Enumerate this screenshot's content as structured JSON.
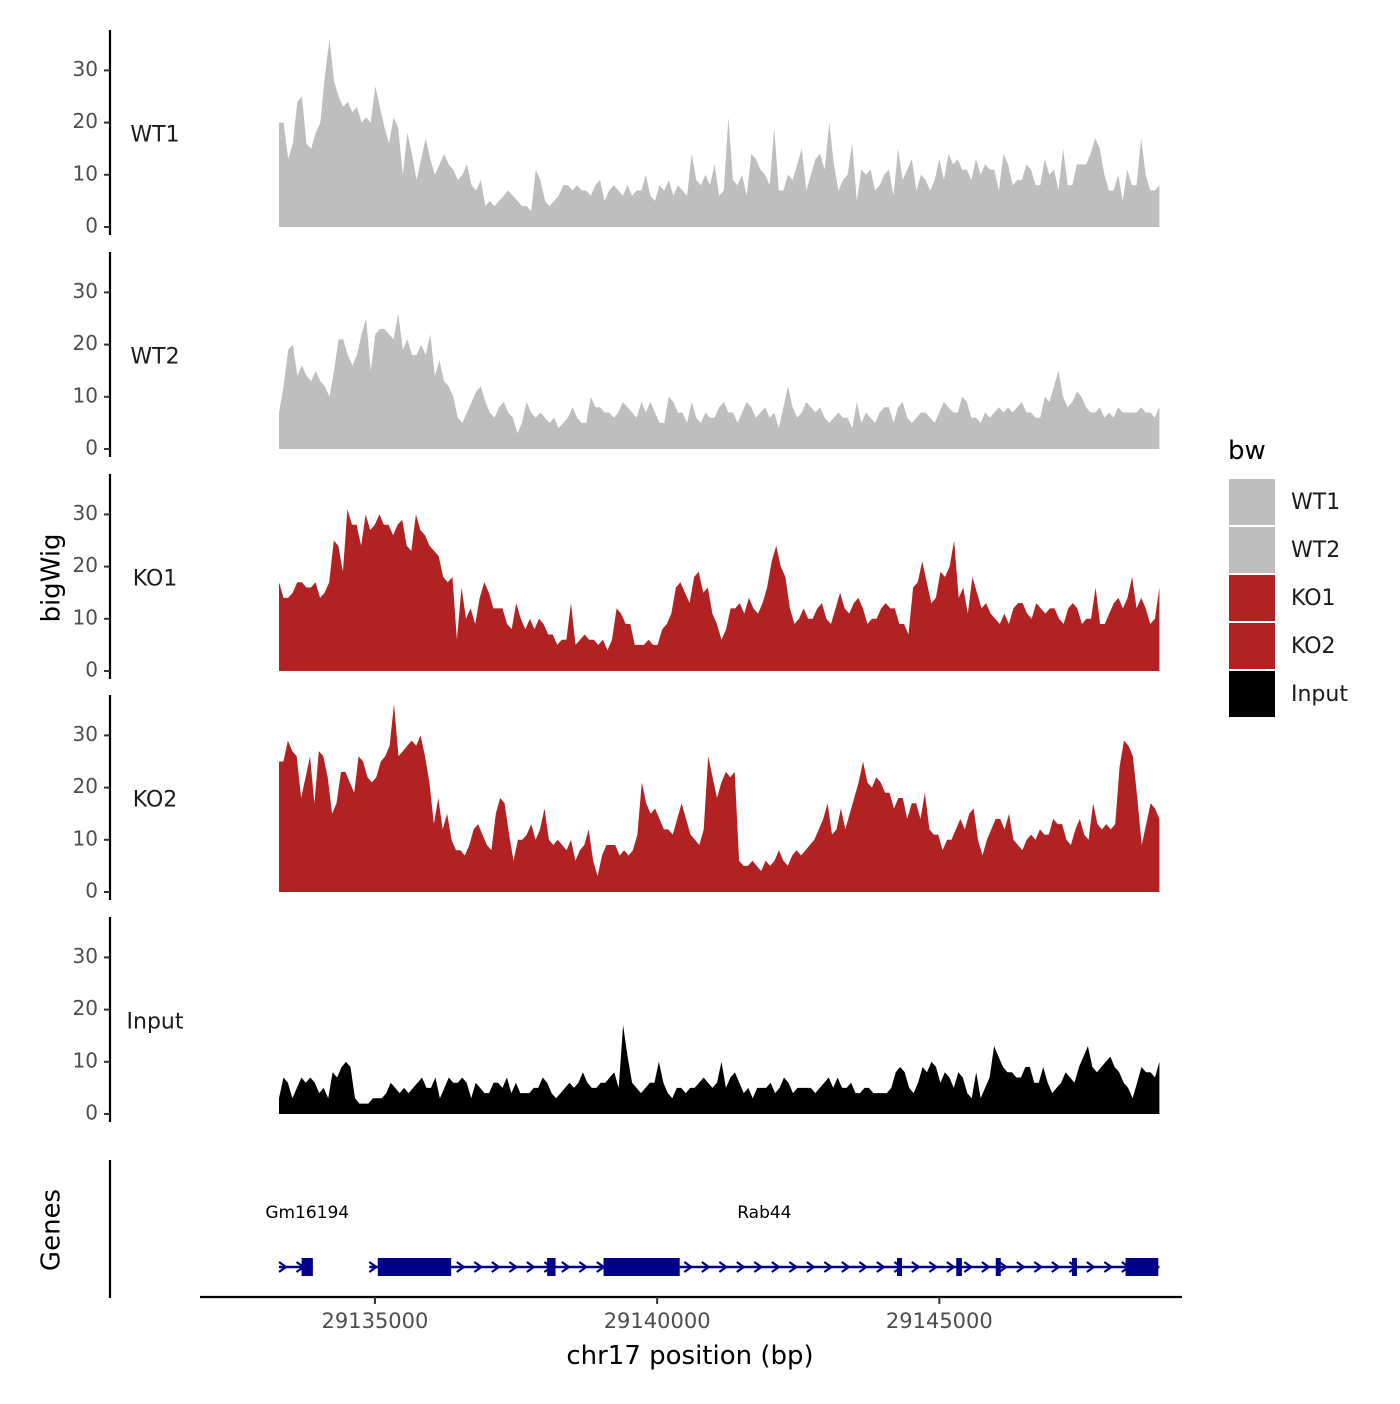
{
  "chart_data": {
    "type": "area",
    "ylabel": "bigWig",
    "xlabel": "chr17 position (bp)",
    "genes_label": "Genes",
    "legend_title": "bw",
    "x_range": [
      29133300,
      29148900
    ],
    "x_axis_limits": [
      29131900,
      29149300
    ],
    "x_ticks": [
      29135000,
      29140000,
      29145000
    ],
    "x_tick_labels": [
      "29135000",
      "29140000",
      "29145000"
    ],
    "y_range": [
      0,
      38
    ],
    "y_ticks": [
      0,
      10,
      20,
      30
    ],
    "y_tick_labels": [
      "0",
      "10",
      "20",
      "30"
    ],
    "colors": {
      "WT1": "#bebebe",
      "WT2": "#bebebe",
      "KO1": "#b22222",
      "KO2": "#b22222",
      "Input": "#000000",
      "gene": "#00008b"
    },
    "series": [
      {
        "name": "WT1",
        "values": [
          20,
          20,
          13,
          16,
          24,
          25,
          16,
          15,
          18,
          20,
          29,
          36,
          28,
          25,
          23,
          24,
          22,
          23,
          20,
          21,
          20,
          27,
          23,
          19,
          16,
          21,
          19,
          10,
          18,
          14,
          9,
          13,
          17,
          13,
          10,
          12,
          14,
          12,
          11,
          9,
          10,
          12,
          8,
          7,
          9,
          4,
          5,
          4,
          5,
          6,
          7,
          6,
          5,
          4,
          4,
          3,
          11,
          9,
          5,
          4,
          5,
          6,
          8,
          8,
          7,
          8,
          7,
          7,
          6,
          8,
          9,
          5,
          7,
          8,
          7,
          6,
          8,
          6,
          7,
          7,
          10,
          6,
          5,
          8,
          7,
          9,
          6,
          8,
          7,
          6,
          14,
          9,
          8,
          10,
          8,
          12,
          6,
          7,
          21,
          9,
          8,
          10,
          6,
          14,
          13,
          11,
          10,
          8,
          19,
          7,
          7,
          10,
          9,
          12,
          15,
          7,
          10,
          13,
          14,
          11,
          20,
          12,
          7,
          9,
          10,
          16,
          5,
          11,
          10,
          11,
          7,
          8,
          10,
          11,
          6,
          15,
          9,
          11,
          13,
          7,
          10,
          9,
          7,
          9,
          13,
          9,
          14,
          12,
          13,
          11,
          11,
          9,
          13,
          10,
          12,
          11,
          11,
          7,
          14,
          12,
          8,
          9,
          9,
          12,
          11,
          8,
          8,
          13,
          10,
          11,
          7,
          15,
          8,
          8,
          12,
          12,
          12,
          14,
          17,
          15,
          10,
          7,
          7,
          10,
          5,
          11,
          8,
          8,
          17,
          10,
          7,
          7,
          8
        ]
      },
      {
        "name": "WT2",
        "values": [
          7,
          12,
          19,
          20,
          14,
          16,
          14,
          13,
          15,
          13,
          12,
          10,
          15,
          21,
          21,
          18,
          16,
          18,
          22,
          25,
          15,
          22,
          23,
          23,
          22,
          21,
          26,
          19,
          21,
          18,
          18,
          20,
          18,
          22,
          14,
          17,
          13,
          12,
          10,
          6,
          5,
          7,
          9,
          11,
          12,
          9,
          7,
          6,
          8,
          9,
          7,
          6,
          3,
          5,
          9,
          7,
          6,
          7,
          6,
          5,
          6,
          4,
          5,
          6,
          8,
          6,
          5,
          5,
          10,
          8,
          8,
          7,
          7,
          6,
          7,
          9,
          8,
          7,
          6,
          9,
          7,
          9,
          7,
          5,
          5,
          10,
          9,
          7,
          7,
          5,
          9,
          6,
          5,
          7,
          6,
          6,
          8,
          9,
          7,
          7,
          5,
          7,
          9,
          8,
          6,
          7,
          8,
          6,
          7,
          4,
          8,
          12,
          8,
          6,
          7,
          9,
          8,
          7,
          8,
          6,
          5,
          6,
          7,
          6,
          6,
          4,
          9,
          5,
          7,
          6,
          5,
          7,
          8,
          8,
          5,
          8,
          9,
          6,
          5,
          6,
          7,
          7,
          6,
          5,
          7,
          9,
          8,
          7,
          7,
          10,
          9,
          6,
          6,
          5,
          7,
          6,
          7,
          8,
          7,
          8,
          7,
          8,
          9,
          7,
          7,
          6,
          6,
          10,
          9,
          12,
          15,
          10,
          8,
          9,
          11,
          10,
          8,
          7,
          7,
          8,
          6,
          7,
          6,
          8,
          7,
          7,
          7,
          7,
          8,
          7,
          7,
          6,
          8
        ]
      },
      {
        "name": "KO1",
        "values": [
          17,
          14,
          14,
          15,
          17,
          17,
          16,
          16,
          17,
          14,
          15,
          17,
          25,
          24,
          19,
          31,
          28,
          28,
          24,
          30,
          27,
          28,
          30,
          28,
          28,
          26,
          28,
          29,
          24,
          23,
          30,
          27,
          26,
          24,
          23,
          22,
          18,
          17,
          18,
          6,
          16,
          10,
          12,
          9,
          14,
          17,
          15,
          12,
          12,
          12,
          9,
          8,
          13,
          10,
          8,
          10,
          8,
          10,
          9,
          7,
          7,
          5,
          6,
          6,
          13,
          5,
          6,
          7,
          6,
          6,
          5,
          6,
          4,
          6,
          12,
          11,
          9,
          9,
          5,
          5,
          5,
          6,
          5,
          5,
          8,
          9,
          11,
          16,
          17,
          15,
          13,
          18,
          19,
          15,
          16,
          11,
          9,
          6,
          8,
          12,
          12,
          13,
          11,
          14,
          12,
          11,
          13,
          16,
          21,
          24,
          20,
          18,
          12,
          9,
          10,
          12,
          10,
          10,
          12,
          13,
          10,
          9,
          12,
          15,
          12,
          11,
          13,
          14,
          12,
          9,
          10,
          10,
          12,
          13,
          12,
          12,
          9,
          9,
          7,
          16,
          17,
          21,
          17,
          13,
          14,
          19,
          18,
          20,
          25,
          14,
          16,
          11,
          18,
          15,
          12,
          13,
          11,
          10,
          9,
          11,
          9,
          12,
          13,
          13,
          11,
          10,
          13,
          12,
          11,
          12,
          12,
          10,
          9,
          12,
          13,
          12,
          9,
          10,
          10,
          16,
          9,
          9,
          11,
          13,
          14,
          12,
          14,
          18,
          12,
          14,
          12,
          9,
          10,
          16
        ]
      },
      {
        "name": "KO2",
        "values": [
          25,
          25,
          29,
          27,
          26,
          18,
          22,
          26,
          17,
          27,
          26,
          22,
          15,
          17,
          23,
          23,
          21,
          19,
          26,
          25,
          22,
          21,
          22,
          25,
          26,
          28,
          36,
          26,
          27,
          28,
          29,
          28,
          30,
          26,
          21,
          13,
          18,
          12,
          15,
          10,
          8,
          8,
          7,
          9,
          12,
          13,
          11,
          9,
          8,
          15,
          18,
          17,
          11,
          6,
          10,
          10,
          11,
          13,
          10,
          12,
          16,
          10,
          9,
          10,
          9,
          8,
          10,
          6,
          8,
          9,
          12,
          6,
          3,
          7,
          9,
          9,
          9,
          7,
          8,
          7,
          8,
          11,
          21,
          17,
          15,
          16,
          14,
          12,
          12,
          11,
          14,
          17,
          14,
          11,
          10,
          9,
          12,
          26,
          22,
          18,
          21,
          23,
          22,
          23,
          6,
          5,
          5,
          6,
          5,
          4,
          6,
          5,
          6,
          8,
          6,
          5,
          7,
          8,
          7,
          8,
          9,
          10,
          12,
          14,
          17,
          11,
          12,
          16,
          12,
          15,
          18,
          21,
          25,
          21,
          20,
          22,
          21,
          19,
          19,
          16,
          18,
          18,
          14,
          17,
          17,
          14,
          19,
          12,
          11,
          11,
          8,
          10,
          10,
          12,
          14,
          12,
          15,
          16,
          10,
          7,
          10,
          12,
          14,
          14,
          12,
          15,
          10,
          9,
          8,
          10,
          11,
          10,
          12,
          11,
          11,
          14,
          13,
          13,
          10,
          9,
          12,
          14,
          11,
          10,
          17,
          13,
          12,
          13,
          12,
          13,
          24,
          29,
          28,
          26,
          18,
          9,
          13,
          17,
          16,
          14
        ]
      },
      {
        "name": "Input",
        "values": [
          3,
          7,
          6,
          3,
          5,
          7,
          6,
          7,
          6,
          4,
          5,
          3,
          8,
          7,
          9,
          10,
          9,
          3,
          2,
          2,
          2,
          3,
          3,
          3,
          4,
          6,
          5,
          4,
          5,
          4,
          5,
          6,
          7,
          5,
          5,
          7,
          3,
          5,
          7,
          6,
          6,
          7,
          6,
          3,
          6,
          5,
          4,
          4,
          6,
          6,
          5,
          7,
          4,
          6,
          4,
          4,
          4,
          5,
          5,
          7,
          6,
          4,
          3,
          4,
          5,
          6,
          5,
          6,
          8,
          6,
          5,
          5,
          6,
          6,
          7,
          8,
          5,
          17,
          11,
          6,
          5,
          4,
          5,
          6,
          6,
          10,
          6,
          4,
          3,
          5,
          5,
          4,
          5,
          5,
          6,
          7,
          6,
          5,
          6,
          10,
          5,
          7,
          8,
          6,
          4,
          5,
          3,
          5,
          5,
          5,
          6,
          4,
          5,
          7,
          6,
          4,
          5,
          5,
          5,
          5,
          4,
          5,
          6,
          7,
          5,
          7,
          5,
          5,
          6,
          4,
          4,
          5,
          5,
          4,
          4,
          4,
          4,
          5,
          8,
          9,
          8,
          5,
          4,
          6,
          9,
          8,
          10,
          9,
          6,
          8,
          7,
          5,
          8,
          7,
          4,
          3,
          8,
          3,
          5,
          7,
          13,
          11,
          9,
          8,
          8,
          7,
          7,
          9,
          9,
          6,
          6,
          9,
          6,
          4,
          5,
          6,
          8,
          7,
          6,
          9,
          11,
          13,
          9,
          8,
          9,
          10,
          11,
          9,
          8,
          6,
          5,
          3,
          6,
          9,
          8,
          8,
          7,
          10
        ]
      }
    ],
    "genes": [
      {
        "name": "Gm16194",
        "label_position": 29133800,
        "intron_range": [
          29133300,
          29133900
        ],
        "exons": [
          [
            29133700,
            29133900
          ]
        ]
      },
      {
        "name": "Rab44",
        "label_position": 29141900,
        "intron_range": [
          29134900,
          29148900
        ],
        "exons": [
          [
            29135050,
            29136350
          ],
          [
            29138050,
            29138200
          ],
          [
            29139050,
            29140400
          ],
          [
            29144250,
            29144300
          ],
          [
            29145300,
            29145400
          ],
          [
            29146000,
            29146080
          ],
          [
            29147350,
            29147400
          ],
          [
            29148300,
            29148880
          ]
        ]
      }
    ]
  }
}
